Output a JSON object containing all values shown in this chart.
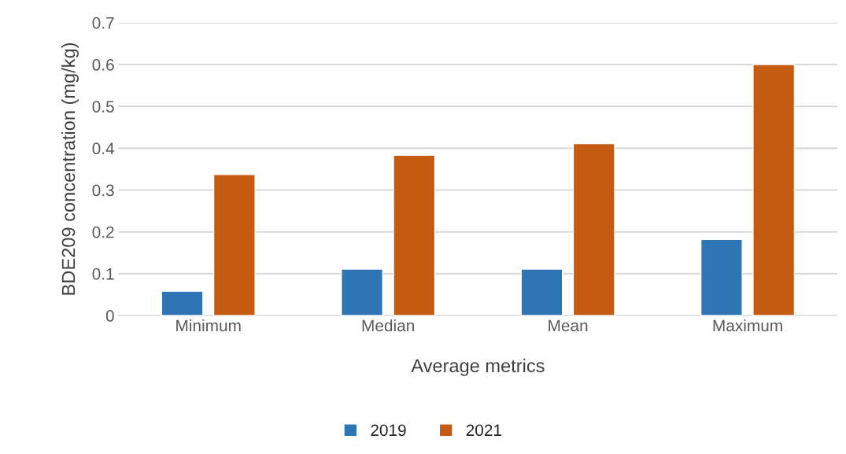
{
  "chart_data": {
    "type": "bar",
    "xlabel": "Average metrics",
    "ylabel": "BDE209 concentration (mg/kg)",
    "categories": [
      "Minimum",
      "Median",
      "Mean",
      "Maximum"
    ],
    "series": [
      {
        "name": "2019",
        "color": "#2e75b6",
        "values": [
          0.058,
          0.111,
          0.111,
          0.182
        ]
      },
      {
        "name": "2021",
        "color": "#c55a11",
        "values": [
          0.337,
          0.383,
          0.411,
          0.6
        ]
      }
    ],
    "ylim": [
      0,
      0.7
    ],
    "yticks": [
      0,
      0.1,
      0.2,
      0.3,
      0.4,
      0.5,
      0.6,
      0.7
    ],
    "grid": "y",
    "legend": "bottom"
  }
}
